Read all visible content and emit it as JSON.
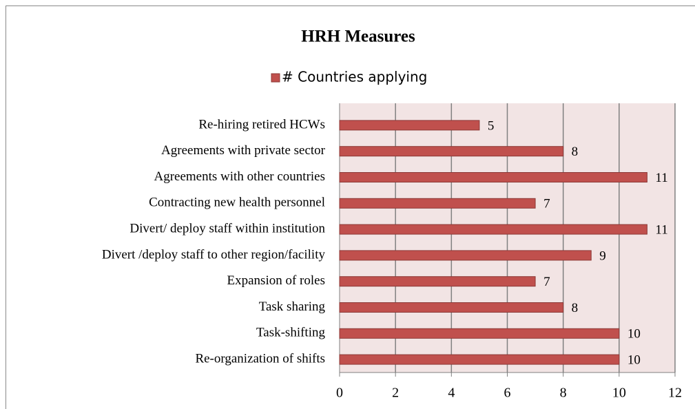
{
  "chart_data": {
    "type": "barh",
    "title": "HRH Measures",
    "categories": [
      "Re-hiring retired HCWs",
      "Agreements with private sector",
      "Agreements with other countries",
      "Contracting new health personnel",
      "Divert/ deploy staff within institution",
      "Divert /deploy staff to other region/facility",
      "Expansion of roles",
      "Task sharing",
      "Task-shifting",
      "Re-organization of shifts"
    ],
    "series": [
      {
        "name": "# Countries applying",
        "color": "#c0504d",
        "values": [
          5,
          8,
          11,
          7,
          11,
          9,
          7,
          8,
          10,
          10
        ]
      }
    ],
    "xlim": [
      0,
      12
    ],
    "xticks": [
      0,
      2,
      4,
      6,
      8,
      10,
      12
    ],
    "grid": true,
    "legend": "top"
  }
}
